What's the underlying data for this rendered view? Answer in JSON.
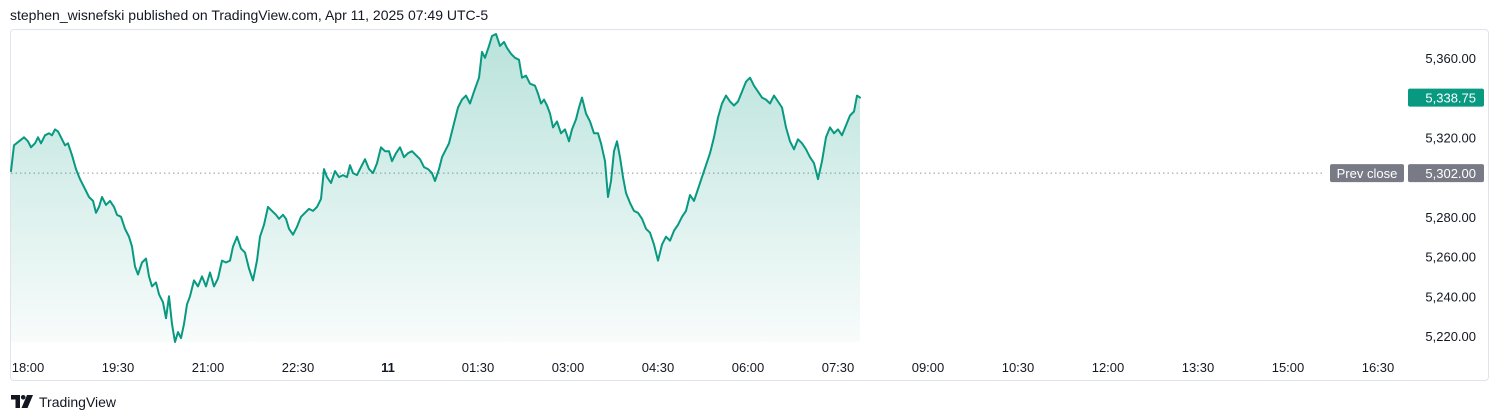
{
  "header": {
    "attribution": "stephen_wisnefski published on TradingView.com, Apr 11, 2025 07:49 UTC-5"
  },
  "footer": {
    "brand": "TradingView",
    "logo_icon": "tradingview-logo-icon"
  },
  "colors": {
    "line": "#089981",
    "fill": "#089981",
    "label_bg": "#787b86",
    "grid_dotted": "#9598a1",
    "text": "#131722"
  },
  "chart_data": {
    "type": "area",
    "last_price": "5,338.75",
    "prev_close": {
      "label": "Prev close",
      "value": "5,302.00",
      "numeric": 5302
    },
    "y_ticks": [
      "5,360.00",
      "5,320.00",
      "5,280.00",
      "5,260.00",
      "5,240.00",
      "5,220.00"
    ],
    "y_tick_values": [
      5360,
      5320,
      5280,
      5260,
      5240,
      5220
    ],
    "ylim": [
      5214,
      5374
    ],
    "x_ticks": [
      {
        "label": "18:00",
        "t": 0,
        "bold": false
      },
      {
        "label": "19:30",
        "t": 90,
        "bold": false
      },
      {
        "label": "21:00",
        "t": 180,
        "bold": false
      },
      {
        "label": "22:30",
        "t": 270,
        "bold": false
      },
      {
        "label": "11",
        "t": 360,
        "bold": true
      },
      {
        "label": "01:30",
        "t": 450,
        "bold": false
      },
      {
        "label": "03:00",
        "t": 540,
        "bold": false
      },
      {
        "label": "04:30",
        "t": 630,
        "bold": false
      },
      {
        "label": "06:00",
        "t": 720,
        "bold": false
      },
      {
        "label": "07:30",
        "t": 810,
        "bold": false
      },
      {
        "label": "09:00",
        "t": 900,
        "bold": false
      },
      {
        "label": "10:30",
        "t": 990,
        "bold": false
      },
      {
        "label": "12:00",
        "t": 1080,
        "bold": false
      },
      {
        "label": "13:30",
        "t": 1170,
        "bold": false
      },
      {
        "label": "15:00",
        "t": 1260,
        "bold": false
      },
      {
        "label": "16:30",
        "t": 1350,
        "bold": false
      }
    ],
    "x_unit": "minutes from 18:00",
    "x_domain": [
      0,
      1398
    ],
    "series": [
      {
        "points": [
          [
            0,
            5303
          ],
          [
            3,
            5316
          ],
          [
            8,
            5318
          ],
          [
            13,
            5320
          ],
          [
            17,
            5318
          ],
          [
            20,
            5315
          ],
          [
            24,
            5317
          ],
          [
            27,
            5320
          ],
          [
            30,
            5317
          ],
          [
            34,
            5321
          ],
          [
            38,
            5322
          ],
          [
            41,
            5321
          ],
          [
            44,
            5324
          ],
          [
            47,
            5323
          ],
          [
            51,
            5319
          ],
          [
            54,
            5316
          ],
          [
            57,
            5317
          ],
          [
            61,
            5311
          ],
          [
            65,
            5304
          ],
          [
            69,
            5299
          ],
          [
            73,
            5295
          ],
          [
            78,
            5290
          ],
          [
            82,
            5288
          ],
          [
            85,
            5282
          ],
          [
            88,
            5285
          ],
          [
            91,
            5290
          ],
          [
            95,
            5286
          ],
          [
            99,
            5288
          ],
          [
            103,
            5285
          ],
          [
            106,
            5281
          ],
          [
            110,
            5280
          ],
          [
            114,
            5274
          ],
          [
            118,
            5270
          ],
          [
            121,
            5265
          ],
          [
            124,
            5255
          ],
          [
            127,
            5251
          ],
          [
            131,
            5257
          ],
          [
            135,
            5259
          ],
          [
            138,
            5250
          ],
          [
            141,
            5245
          ],
          [
            145,
            5247
          ],
          [
            148,
            5241
          ],
          [
            152,
            5237
          ],
          [
            155,
            5229
          ],
          [
            158,
            5240
          ],
          [
            161,
            5226
          ],
          [
            164,
            5217
          ],
          [
            167,
            5222
          ],
          [
            170,
            5219
          ],
          [
            173,
            5226
          ],
          [
            176,
            5236
          ],
          [
            179,
            5240
          ],
          [
            183,
            5248
          ],
          [
            187,
            5245
          ],
          [
            191,
            5250
          ],
          [
            195,
            5245
          ],
          [
            199,
            5252
          ],
          [
            203,
            5245
          ],
          [
            207,
            5249
          ],
          [
            211,
            5258
          ],
          [
            215,
            5257
          ],
          [
            219,
            5258
          ],
          [
            222,
            5265
          ],
          [
            226,
            5270
          ],
          [
            230,
            5264
          ],
          [
            234,
            5262
          ],
          [
            238,
            5254
          ],
          [
            242,
            5248
          ],
          [
            246,
            5258
          ],
          [
            249,
            5270
          ],
          [
            253,
            5276
          ],
          [
            257,
            5285
          ],
          [
            261,
            5283
          ],
          [
            265,
            5281
          ],
          [
            268,
            5279
          ],
          [
            272,
            5281
          ],
          [
            275,
            5279
          ],
          [
            278,
            5274
          ],
          [
            282,
            5271
          ],
          [
            286,
            5275
          ],
          [
            290,
            5280
          ],
          [
            294,
            5282
          ],
          [
            298,
            5284
          ],
          [
            302,
            5283
          ],
          [
            306,
            5285
          ],
          [
            310,
            5289
          ],
          [
            313,
            5304
          ],
          [
            316,
            5300
          ],
          [
            320,
            5297
          ],
          [
            324,
            5303
          ],
          [
            328,
            5300
          ],
          [
            332,
            5301
          ],
          [
            336,
            5300
          ],
          [
            339,
            5306
          ],
          [
            342,
            5302
          ],
          [
            346,
            5301
          ],
          [
            350,
            5305
          ],
          [
            354,
            5309
          ],
          [
            358,
            5304
          ],
          [
            362,
            5302
          ],
          [
            366,
            5307
          ],
          [
            370,
            5315
          ],
          [
            374,
            5313
          ],
          [
            378,
            5313
          ],
          [
            381,
            5308
          ],
          [
            385,
            5312
          ],
          [
            389,
            5315
          ],
          [
            393,
            5310
          ],
          [
            397,
            5312
          ],
          [
            401,
            5313
          ],
          [
            405,
            5311
          ],
          [
            409,
            5309
          ],
          [
            413,
            5305
          ],
          [
            417,
            5304
          ],
          [
            421,
            5302
          ],
          [
            424,
            5298
          ],
          [
            428,
            5304
          ],
          [
            431,
            5310
          ],
          [
            434,
            5313
          ],
          [
            438,
            5317
          ],
          [
            441,
            5323
          ],
          [
            444,
            5329
          ],
          [
            447,
            5335
          ],
          [
            451,
            5339
          ],
          [
            455,
            5341
          ],
          [
            459,
            5337
          ],
          [
            463,
            5343
          ],
          [
            468,
            5350
          ],
          [
            471,
            5363
          ],
          [
            474,
            5360
          ],
          [
            478,
            5366
          ],
          [
            481,
            5371
          ],
          [
            485,
            5372
          ],
          [
            489,
            5366
          ],
          [
            493,
            5368
          ],
          [
            496,
            5365
          ],
          [
            500,
            5362
          ],
          [
            504,
            5360
          ],
          [
            508,
            5359
          ],
          [
            511,
            5350
          ],
          [
            515,
            5351
          ],
          [
            519,
            5347
          ],
          [
            524,
            5346
          ],
          [
            527,
            5342
          ],
          [
            530,
            5337
          ],
          [
            533,
            5339
          ],
          [
            536,
            5336
          ],
          [
            539,
            5332
          ],
          [
            542,
            5325
          ],
          [
            546,
            5328
          ],
          [
            550,
            5322
          ],
          [
            554,
            5324
          ],
          [
            558,
            5318
          ],
          [
            561,
            5324
          ],
          [
            565,
            5329
          ],
          [
            568,
            5335
          ],
          [
            571,
            5340
          ],
          [
            575,
            5332
          ],
          [
            579,
            5328
          ],
          [
            583,
            5322
          ],
          [
            587,
            5322
          ],
          [
            590,
            5317
          ],
          [
            594,
            5308
          ],
          [
            597,
            5290
          ],
          [
            600,
            5298
          ],
          [
            603,
            5313
          ],
          [
            606,
            5318
          ],
          [
            609,
            5310
          ],
          [
            612,
            5300
          ],
          [
            615,
            5292
          ],
          [
            619,
            5287
          ],
          [
            623,
            5283
          ],
          [
            627,
            5282
          ],
          [
            631,
            5279
          ],
          [
            635,
            5274
          ],
          [
            639,
            5272
          ],
          [
            643,
            5266
          ],
          [
            647,
            5258
          ],
          [
            651,
            5266
          ],
          [
            655,
            5270
          ],
          [
            659,
            5268
          ],
          [
            663,
            5273
          ],
          [
            667,
            5276
          ],
          [
            671,
            5280
          ],
          [
            675,
            5283
          ],
          [
            679,
            5291
          ],
          [
            683,
            5288
          ],
          [
            687,
            5294
          ],
          [
            691,
            5300
          ],
          [
            695,
            5306
          ],
          [
            699,
            5312
          ],
          [
            703,
            5320
          ],
          [
            707,
            5330
          ],
          [
            711,
            5337
          ],
          [
            715,
            5341
          ],
          [
            719,
            5338
          ],
          [
            723,
            5336
          ],
          [
            727,
            5338
          ],
          [
            731,
            5343
          ],
          [
            735,
            5348
          ],
          [
            739,
            5350
          ],
          [
            743,
            5346
          ],
          [
            747,
            5343
          ],
          [
            751,
            5340
          ],
          [
            755,
            5339
          ],
          [
            759,
            5337
          ],
          [
            763,
            5341
          ],
          [
            767,
            5338
          ],
          [
            771,
            5335
          ],
          [
            775,
            5325
          ],
          [
            779,
            5318
          ],
          [
            783,
            5314
          ],
          [
            787,
            5319
          ],
          [
            791,
            5317
          ],
          [
            795,
            5314
          ],
          [
            799,
            5310
          ],
          [
            803,
            5307
          ],
          [
            807,
            5299
          ],
          [
            811,
            5308
          ],
          [
            815,
            5320
          ],
          [
            819,
            5325
          ],
          [
            823,
            5322
          ],
          [
            827,
            5324
          ],
          [
            831,
            5321
          ],
          [
            835,
            5326
          ],
          [
            839,
            5331
          ],
          [
            843,
            5333
          ],
          [
            846,
            5341
          ],
          [
            849,
            5340
          ]
        ]
      }
    ]
  }
}
